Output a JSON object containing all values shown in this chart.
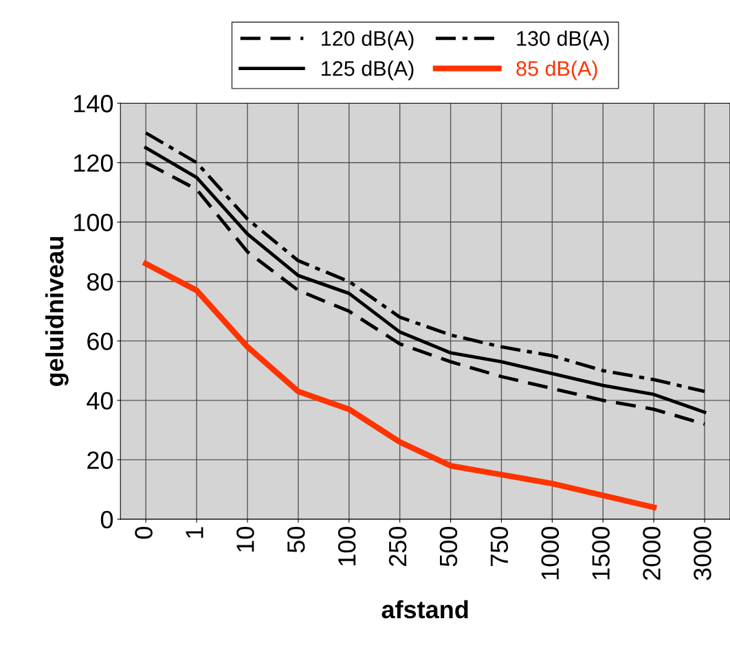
{
  "chart_data": {
    "type": "line",
    "xlabel": "afstand",
    "ylabel": "geluidniveau",
    "categories": [
      "0",
      "1",
      "10",
      "50",
      "100",
      "250",
      "500",
      "750",
      "1000",
      "1500",
      "2000",
      "3000"
    ],
    "series": [
      {
        "name": "120 dB(A)",
        "color": "#000000",
        "line_style": "dashed",
        "values": [
          120,
          111,
          90,
          77,
          70,
          59,
          53,
          48,
          44,
          40,
          37,
          32
        ]
      },
      {
        "name": "125 dB(A)",
        "color": "#000000",
        "line_style": "solid",
        "values": [
          125,
          115,
          96,
          82,
          76,
          63,
          56,
          53,
          49,
          45,
          42,
          36
        ]
      },
      {
        "name": "130 dB(A)",
        "color": "#000000",
        "line_style": "dashdot",
        "values": [
          130,
          120,
          101,
          87,
          80,
          68,
          62,
          58,
          55,
          50,
          47,
          43
        ]
      },
      {
        "name": "85 dB(A)",
        "color": "#ff3300",
        "line_style": "solid",
        "values": [
          86,
          77,
          58,
          43,
          37,
          26,
          18,
          15,
          12,
          8,
          4,
          null
        ]
      }
    ],
    "ylim": [
      0,
      140
    ],
    "yticks": [
      0,
      20,
      40,
      60,
      80,
      100,
      120,
      140
    ],
    "grid": true,
    "legend": "top",
    "marker": "none"
  }
}
